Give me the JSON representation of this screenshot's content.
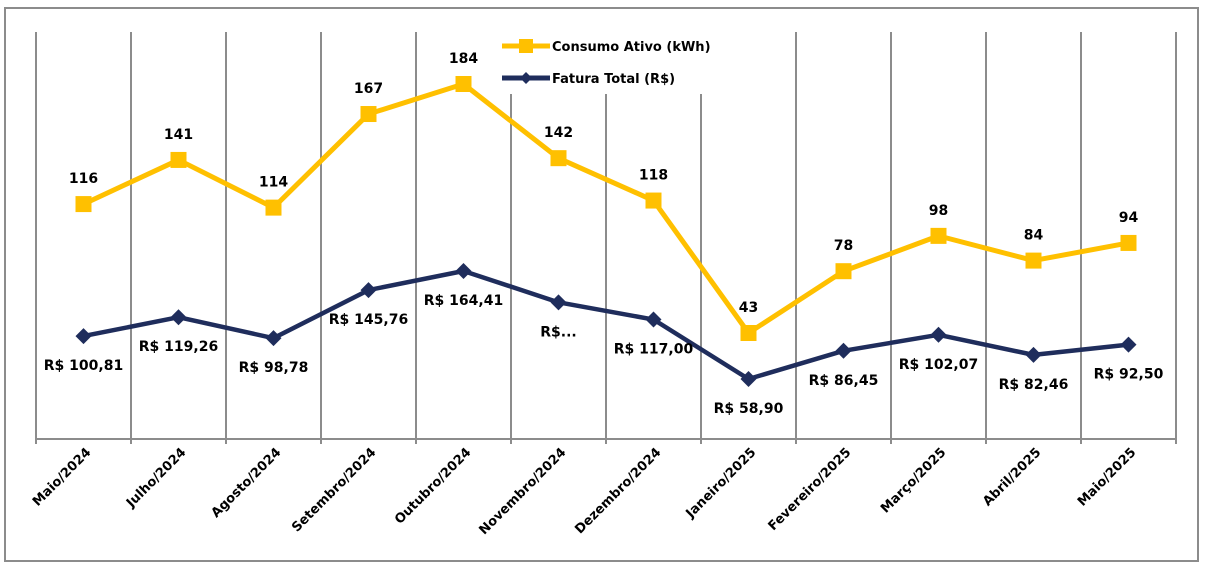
{
  "chart_data": {
    "type": "line",
    "title": "",
    "xlabel": "",
    "ylabel": "",
    "grid": "vertical",
    "legend_position": "top-center",
    "categories": [
      "Maio/2024",
      "Julho/2024",
      "Agosto/2024",
      "Setembro/2024",
      "Outubro/2024",
      "Novembro/2024",
      "Dezembro/2024",
      "Janeiro/2025",
      "Fevereiro/2025",
      "Março/2025",
      "Abril/2025",
      "Maio/2025"
    ],
    "series": [
      {
        "name": "Consumo Ativo (kWh)",
        "color": "#FFC000",
        "marker": "square",
        "values": [
          116,
          141,
          114,
          167,
          184,
          142,
          118,
          43,
          78,
          98,
          84,
          94
        ],
        "labels": [
          "116",
          "141",
          "114",
          "167",
          "184",
          "142",
          "118",
          "43",
          "78",
          "98",
          "84",
          "94"
        ],
        "label_position": [
          "above",
          "above",
          "above",
          "above",
          "above",
          "above",
          "above",
          "above",
          "above",
          "above",
          "above",
          "above"
        ]
      },
      {
        "name": "Fatura Total (R$)",
        "color": "#1F2D5C",
        "marker": "diamond",
        "values": [
          100.81,
          119.26,
          98.78,
          145.76,
          164.41,
          133.8,
          117.0,
          58.9,
          86.45,
          102.07,
          82.46,
          92.5
        ],
        "labels": [
          "R$ 100,81",
          "R$ 119,26",
          "R$ 98,78",
          "R$ 145,76",
          "R$ 164,41",
          "R$...",
          "R$ 117,00",
          "R$ 58,90",
          "R$ 86,45",
          "R$ 102,07",
          "R$ 82,46",
          "R$ 92,50"
        ],
        "label_position": [
          "below",
          "below",
          "below",
          "below",
          "below",
          "below",
          "below",
          "below",
          "below",
          "below",
          "below",
          "below"
        ]
      }
    ]
  }
}
